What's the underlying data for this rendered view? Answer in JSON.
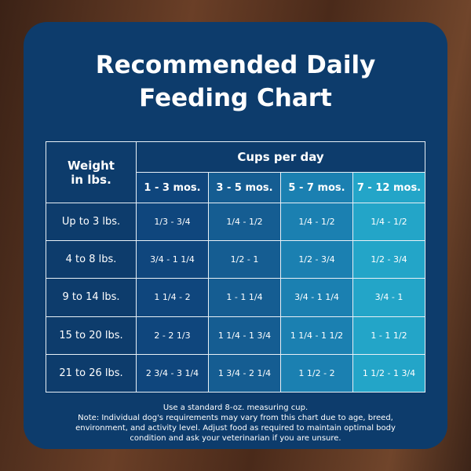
{
  "header": {
    "title": "Recommended Daily Feeding Chart"
  },
  "table": {
    "weight_header": "Weight in lbs.",
    "group_header": "Cups per day",
    "columns": [
      "1 - 3 mos.",
      "3 - 5 mos.",
      "5 - 7 mos.",
      "7 - 12 mos."
    ],
    "rows": [
      [
        "Up to 3 lbs.",
        "1/3 - 3/4",
        "1/4 - 1/2",
        "1/4 - 1/2",
        "1/4 - 1/2"
      ],
      [
        "4 to 8 lbs.",
        "3/4 - 1 1/4",
        "1/2 - 1",
        "1/2 - 3/4",
        "1/2 - 3/4"
      ],
      [
        "9 to 14 lbs.",
        "1 1/4 - 2",
        "1 - 1 1/4",
        "3/4 - 1 1/4",
        "3/4 - 1"
      ],
      [
        "15 to 20 lbs.",
        "2 - 2 1/3",
        "1 1/4 - 1 3/4",
        "1 1/4 - 1 1/2",
        "1 - 1 1/2"
      ],
      [
        "21 to 26 lbs.",
        "2 3/4 - 3 1/4",
        "1 3/4 - 2 1/4",
        "1 1/2 - 2",
        "1 1/2 - 1 3/4"
      ]
    ]
  },
  "notes": [
    "Use a standard 8-oz. measuring cup.",
    "Note: Individual dog's requirements may vary from this chart due to age, breed, environment, and activity level. Adjust food as required to maintain optimal body condition and ask your veterinarian if you are unsure."
  ]
}
